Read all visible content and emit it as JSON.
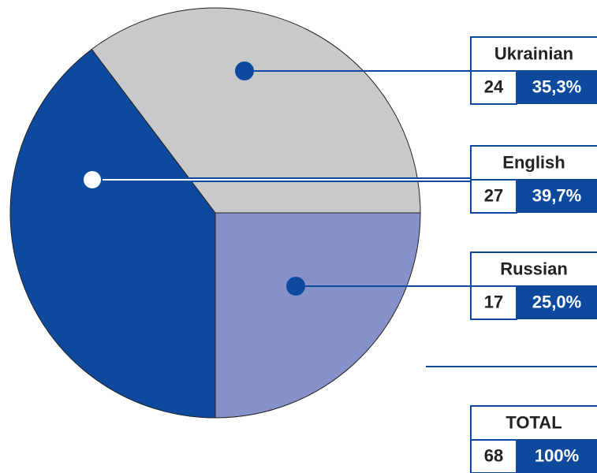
{
  "chart_data": {
    "type": "pie",
    "categories": [
      "Ukrainian",
      "English",
      "Russian"
    ],
    "values": [
      24,
      27,
      17
    ],
    "shares": [
      35.3,
      39.7,
      25.0
    ],
    "share_labels": [
      "35,3%",
      "39,7%",
      "25,0%"
    ],
    "colors": [
      "#c8c9cb",
      "#0d4a9e",
      "#8591c8"
    ],
    "total": {
      "label": "TOTAL",
      "value": 68,
      "share": 100,
      "share_label": "100%"
    }
  }
}
